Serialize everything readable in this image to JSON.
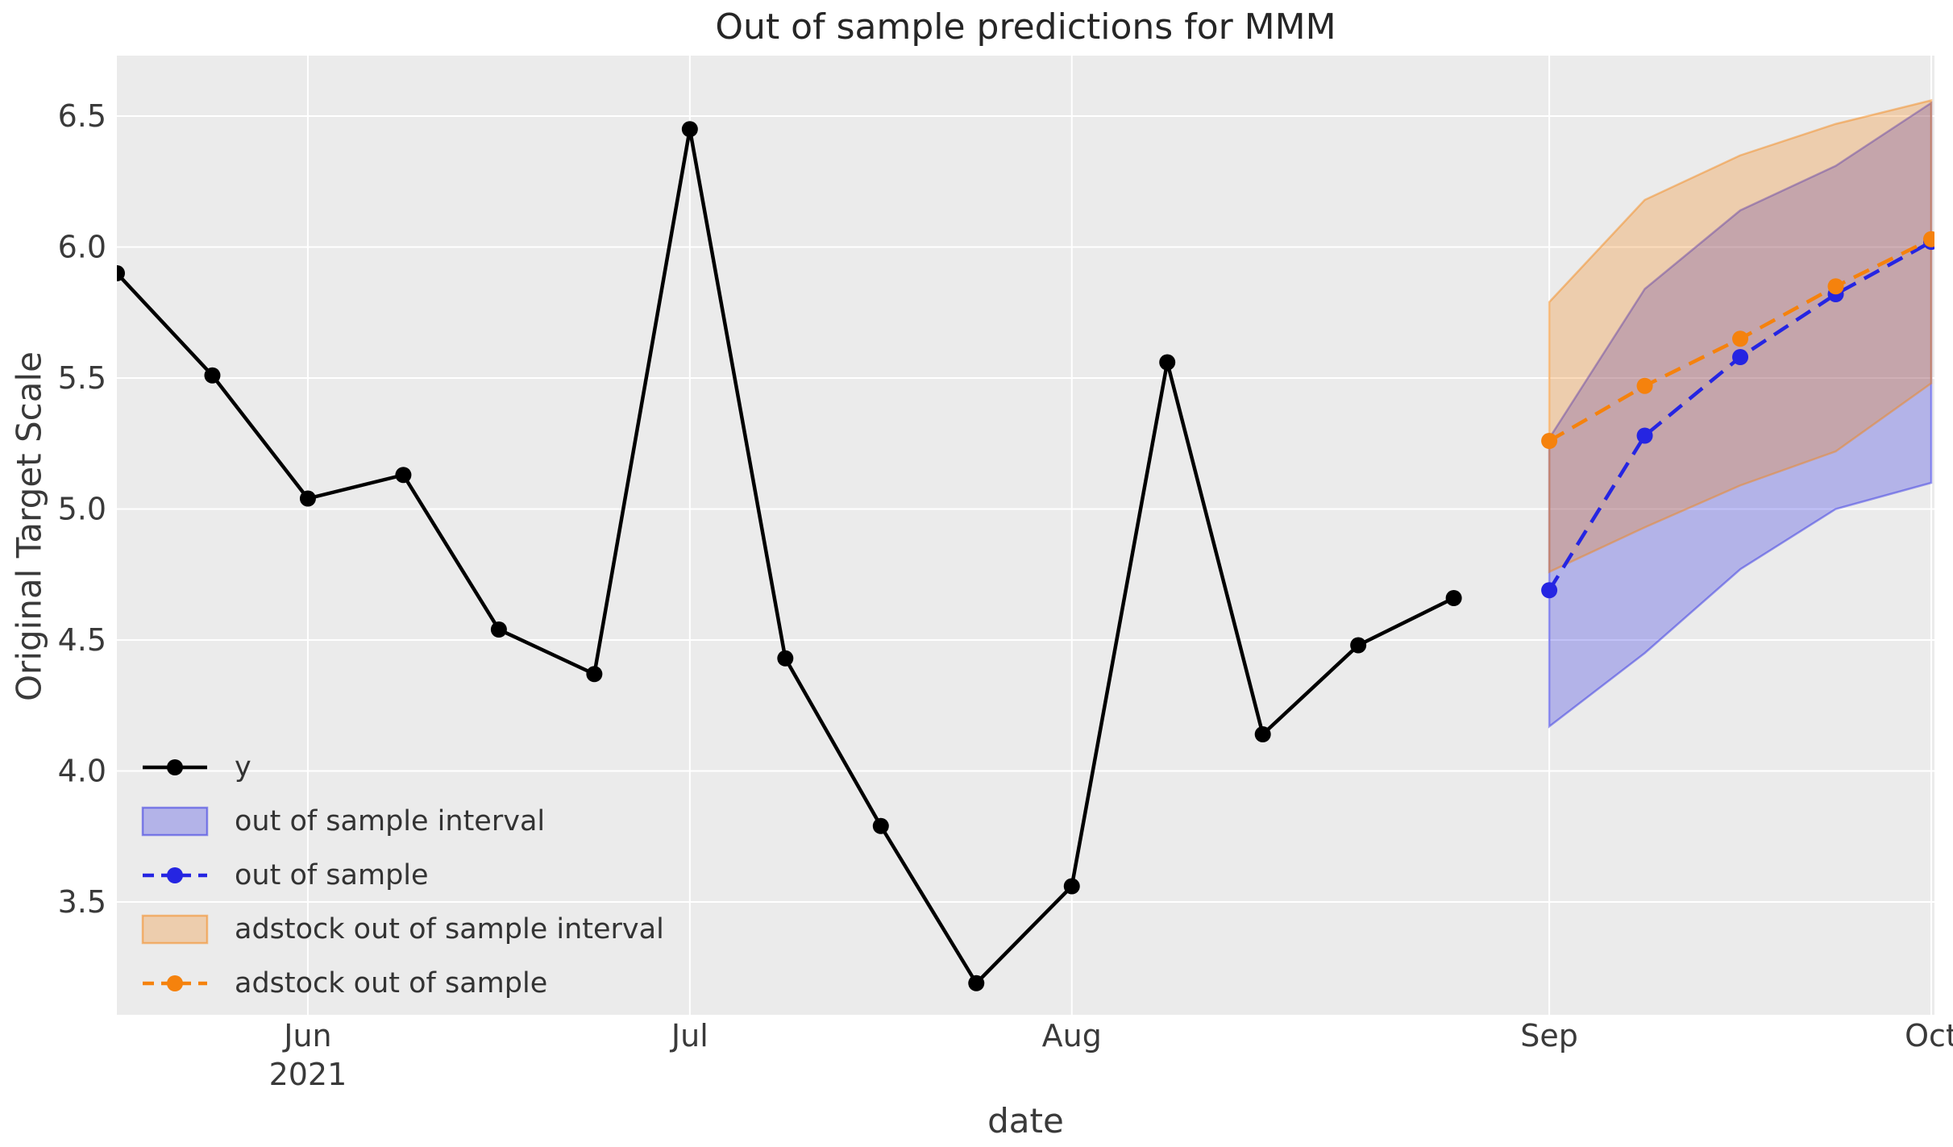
{
  "title": "Out of sample predictions for MMM",
  "colors": {
    "figure_background": "#ffffff",
    "plot_background": "#ebebeb",
    "gridline": "#ffffff",
    "y_series": "#000000",
    "out_of_sample": "#2525e2",
    "adstock": "#f5820d",
    "tick_text": "#3a3a3a",
    "title_text": "#262626"
  },
  "chart_data": {
    "type": "line",
    "title": "Out of sample predictions for MMM",
    "xlabel": "date",
    "ylabel": "Original Target Scale",
    "grid": true,
    "legend_position": "lower left",
    "ylim": [
      3.07,
      6.73
    ],
    "xlim_weeks": [
      0,
      19.05
    ],
    "y_ticks": [
      {
        "value": 6.5,
        "label": "6.5"
      },
      {
        "value": 6.0,
        "label": "6.0"
      },
      {
        "value": 5.5,
        "label": "5.5"
      },
      {
        "value": 5.0,
        "label": "5.0"
      },
      {
        "value": 4.5,
        "label": "4.5"
      },
      {
        "value": 4.0,
        "label": "4.0"
      },
      {
        "value": 3.5,
        "label": "3.5"
      }
    ],
    "x_ticks": [
      {
        "week": 2,
        "label": "Jun",
        "sublabel": "2021"
      },
      {
        "week": 6,
        "label": "Jul",
        "sublabel": ""
      },
      {
        "week": 10,
        "label": "Aug",
        "sublabel": ""
      },
      {
        "week": 15,
        "label": "Sep",
        "sublabel": ""
      },
      {
        "week": 19,
        "label": "Oct",
        "sublabel": ""
      }
    ],
    "series": [
      {
        "name": "y",
        "style": "solid",
        "color": "#000000",
        "dates": [
          "2021-05-23",
          "2021-05-30",
          "2021-06-06",
          "2021-06-13",
          "2021-06-20",
          "2021-06-27",
          "2021-07-04",
          "2021-07-11",
          "2021-07-18",
          "2021-07-25",
          "2021-08-01",
          "2021-08-08",
          "2021-08-15",
          "2021-08-22",
          "2021-08-29"
        ],
        "weeks": [
          0,
          1,
          2,
          3,
          4,
          5,
          6,
          7,
          8,
          9,
          10,
          11,
          12,
          13,
          14
        ],
        "values": [
          5.9,
          5.51,
          5.04,
          5.13,
          4.54,
          4.37,
          6.45,
          4.43,
          3.79,
          3.19,
          3.56,
          5.56,
          4.14,
          4.48,
          4.66
        ]
      },
      {
        "name": "out of sample",
        "style": "dashed",
        "color": "#2525e2",
        "dates": [
          "2021-09-05",
          "2021-09-12",
          "2021-09-19",
          "2021-09-26",
          "2021-10-03"
        ],
        "weeks": [
          15,
          16,
          17,
          18,
          19
        ],
        "values": [
          4.69,
          5.28,
          5.58,
          5.82,
          6.02
        ]
      },
      {
        "name": "adstock out of sample",
        "style": "dashed",
        "color": "#f5820d",
        "dates": [
          "2021-09-05",
          "2021-09-12",
          "2021-09-19",
          "2021-09-26",
          "2021-10-03"
        ],
        "weeks": [
          15,
          16,
          17,
          18,
          19
        ],
        "values": [
          5.26,
          5.47,
          5.65,
          5.85,
          6.03
        ]
      }
    ],
    "intervals": [
      {
        "name": "out of sample interval",
        "color": "#2525e2",
        "weeks": [
          15,
          16,
          17,
          18,
          19
        ],
        "lower": [
          4.17,
          4.45,
          4.77,
          5.0,
          5.1
        ],
        "upper": [
          5.27,
          5.84,
          6.14,
          6.31,
          6.55
        ]
      },
      {
        "name": "adstock out of sample interval",
        "color": "#f5820d",
        "weeks": [
          15,
          16,
          17,
          18,
          19
        ],
        "lower": [
          4.76,
          4.93,
          5.09,
          5.22,
          5.48
        ],
        "upper": [
          5.79,
          6.18,
          6.35,
          6.47,
          6.56
        ]
      }
    ],
    "legend": {
      "entries": [
        {
          "label": "y",
          "swatch": "line-solid",
          "color": "#000000"
        },
        {
          "label": "out of sample interval",
          "swatch": "patch",
          "color": "#2525e2"
        },
        {
          "label": "out of sample",
          "swatch": "line-dashed",
          "color": "#2525e2"
        },
        {
          "label": "adstock out of sample interval",
          "swatch": "patch",
          "color": "#f5820d"
        },
        {
          "label": "adstock out of sample",
          "swatch": "line-dashed",
          "color": "#f5820d"
        }
      ]
    }
  }
}
